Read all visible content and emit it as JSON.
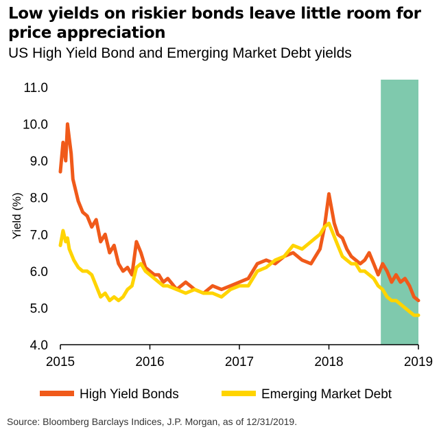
{
  "header": {
    "title": "Low yields on riskier bonds leave little room for price appreciation",
    "subtitle": "US High Yield Bond and Emerging Market Debt yields"
  },
  "footer": {
    "source": "Source: Bloomberg Barclays Indices, J.P. Morgan, as of 12/31/2019."
  },
  "colors": {
    "high_yield": "#f05a1a",
    "emerging": "#ffd400",
    "highlight": "#7fc9ad"
  },
  "chart_data": {
    "type": "line",
    "title": "Low yields on riskier bonds leave little room for price appreciation",
    "subtitle": "US High Yield Bond and Emerging Market Debt yields",
    "ylabel": "Yield (%)",
    "xlabel": "",
    "xlim": [
      2015.0,
      2019.0
    ],
    "ylim": [
      4.0,
      11.0
    ],
    "x_ticks": [
      "2015",
      "2016",
      "2017",
      "2018",
      "2019"
    ],
    "y_ticks": [
      "4.0",
      "5.0",
      "6.0",
      "7.0",
      "8.0",
      "9.0",
      "10.0",
      "11.0"
    ],
    "grid": false,
    "legend": "bottom",
    "highlight_range": [
      2018.58,
      2019.0
    ],
    "series": [
      {
        "name": "High Yield Bonds",
        "x": [
          2015.0,
          2015.03,
          2015.06,
          2015.08,
          2015.1,
          2015.12,
          2015.14,
          2015.17,
          2015.2,
          2015.25,
          2015.3,
          2015.35,
          2015.4,
          2015.45,
          2015.5,
          2015.55,
          2015.6,
          2015.65,
          2015.7,
          2015.75,
          2015.8,
          2015.85,
          2015.9,
          2015.95,
          2016.0,
          2016.05,
          2016.1,
          2016.15,
          2016.2,
          2016.3,
          2016.4,
          2016.5,
          2016.6,
          2016.7,
          2016.8,
          2016.9,
          2017.0,
          2017.1,
          2017.2,
          2017.3,
          2017.4,
          2017.5,
          2017.6,
          2017.7,
          2017.8,
          2017.85,
          2017.9,
          2017.95,
          2018.0,
          2018.03,
          2018.06,
          2018.1,
          2018.15,
          2018.2,
          2018.25,
          2018.3,
          2018.35,
          2018.4,
          2018.45,
          2018.5,
          2018.55,
          2018.6,
          2018.65,
          2018.7,
          2018.75,
          2018.8,
          2018.85,
          2018.9,
          2018.95,
          2019.0
        ],
        "values": [
          8.7,
          9.5,
          9.0,
          10.0,
          9.6,
          9.2,
          8.5,
          8.2,
          7.9,
          7.6,
          7.5,
          7.2,
          7.4,
          6.8,
          7.0,
          6.5,
          6.7,
          6.2,
          6.0,
          6.1,
          5.9,
          6.8,
          6.5,
          6.1,
          6.0,
          5.9,
          5.9,
          5.7,
          5.8,
          5.5,
          5.7,
          5.5,
          5.4,
          5.6,
          5.5,
          5.6,
          5.7,
          5.8,
          6.2,
          6.3,
          6.2,
          6.4,
          6.5,
          6.3,
          6.2,
          6.4,
          6.6,
          7.2,
          8.1,
          7.7,
          7.3,
          7.0,
          6.9,
          6.6,
          6.4,
          6.3,
          6.2,
          6.3,
          6.5,
          6.2,
          5.9,
          6.2,
          6.0,
          5.7,
          5.9,
          5.7,
          5.8,
          5.6,
          5.3,
          5.2
        ]
      },
      {
        "name": "Emerging Market Debt",
        "x": [
          2015.0,
          2015.03,
          2015.06,
          2015.08,
          2015.1,
          2015.15,
          2015.2,
          2015.25,
          2015.3,
          2015.35,
          2015.4,
          2015.45,
          2015.5,
          2015.55,
          2015.6,
          2015.65,
          2015.7,
          2015.75,
          2015.8,
          2015.85,
          2015.9,
          2015.95,
          2016.0,
          2016.05,
          2016.1,
          2016.15,
          2016.2,
          2016.3,
          2016.4,
          2016.5,
          2016.6,
          2016.7,
          2016.8,
          2016.9,
          2017.0,
          2017.1,
          2017.2,
          2017.3,
          2017.4,
          2017.5,
          2017.6,
          2017.7,
          2017.8,
          2017.85,
          2017.9,
          2017.95,
          2018.0,
          2018.05,
          2018.1,
          2018.15,
          2018.2,
          2018.25,
          2018.3,
          2018.35,
          2018.4,
          2018.45,
          2018.5,
          2018.55,
          2018.6,
          2018.65,
          2018.7,
          2018.75,
          2018.8,
          2018.85,
          2018.9,
          2018.95,
          2019.0
        ],
        "values": [
          6.7,
          7.1,
          6.8,
          6.9,
          6.6,
          6.3,
          6.1,
          6.0,
          6.0,
          5.9,
          5.6,
          5.3,
          5.4,
          5.2,
          5.3,
          5.2,
          5.3,
          5.5,
          5.6,
          6.1,
          6.2,
          6.0,
          5.9,
          5.8,
          5.7,
          5.6,
          5.6,
          5.5,
          5.4,
          5.5,
          5.4,
          5.4,
          5.3,
          5.5,
          5.6,
          5.6,
          6.0,
          6.1,
          6.3,
          6.4,
          6.7,
          6.6,
          6.8,
          6.9,
          7.0,
          7.2,
          7.3,
          7.0,
          6.7,
          6.4,
          6.3,
          6.2,
          6.2,
          6.0,
          6.0,
          5.9,
          5.8,
          5.6,
          5.5,
          5.3,
          5.2,
          5.2,
          5.1,
          5.0,
          4.9,
          4.8,
          4.8
        ]
      }
    ]
  }
}
